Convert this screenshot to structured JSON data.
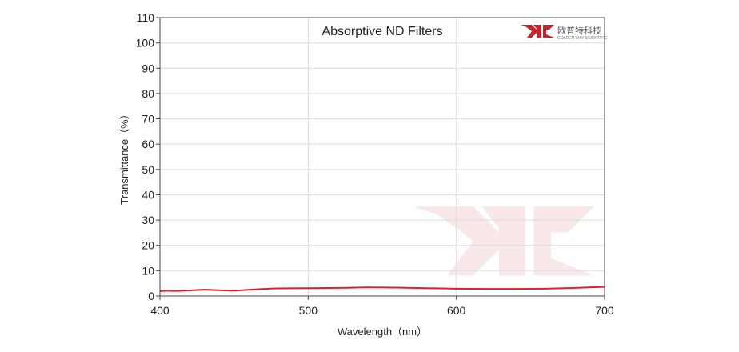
{
  "logo": {
    "cn": "欧普特科技",
    "en": "GOLDEN WAY SCIENTIFIC",
    "color": "#c0282e"
  },
  "chart_data": {
    "type": "line",
    "title": "Absorptive ND Filters",
    "xlabel": "Wavelength（nm）",
    "ylabel": "Transmittance（%）",
    "xlim": [
      400,
      700
    ],
    "ylim": [
      0,
      110
    ],
    "xticks": [
      400,
      500,
      600,
      700
    ],
    "yticks": [
      0,
      10,
      20,
      30,
      40,
      50,
      60,
      70,
      80,
      90,
      100,
      110
    ],
    "grid": true,
    "series": [
      {
        "color": "#e0202a",
        "x": [
          400,
          405,
          410,
          420,
          430,
          440,
          450,
          460,
          470,
          480,
          500,
          520,
          540,
          560,
          580,
          600,
          620,
          640,
          660,
          680,
          700
        ],
        "y": [
          1.9,
          2.1,
          2.0,
          2.2,
          2.5,
          2.3,
          2.1,
          2.5,
          2.8,
          3.0,
          3.1,
          3.2,
          3.4,
          3.3,
          3.1,
          2.9,
          2.8,
          2.8,
          2.9,
          3.2,
          3.6
        ]
      }
    ]
  }
}
